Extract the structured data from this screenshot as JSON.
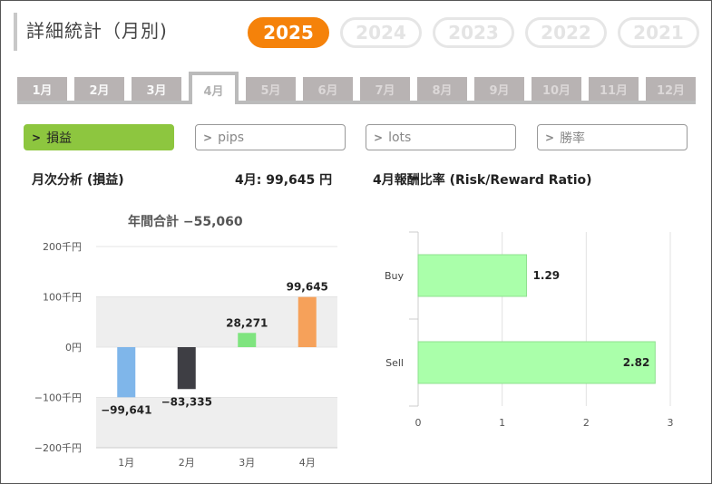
{
  "title": "詳細統計（月別)",
  "years": [
    {
      "label": "2025",
      "active": true
    },
    {
      "label": "2024",
      "active": false
    },
    {
      "label": "2023",
      "active": false
    },
    {
      "label": "2022",
      "active": false
    },
    {
      "label": "2021",
      "active": false
    }
  ],
  "months": [
    {
      "label": "1月",
      "state": "normal"
    },
    {
      "label": "2月",
      "state": "normal"
    },
    {
      "label": "3月",
      "state": "normal"
    },
    {
      "label": "4月",
      "state": "active"
    },
    {
      "label": "5月",
      "state": "dim"
    },
    {
      "label": "6月",
      "state": "dim"
    },
    {
      "label": "7月",
      "state": "dim"
    },
    {
      "label": "8月",
      "state": "dim"
    },
    {
      "label": "9月",
      "state": "dim"
    },
    {
      "label": "10月",
      "state": "dim"
    },
    {
      "label": "11月",
      "state": "dim"
    },
    {
      "label": "12月",
      "state": "dim"
    }
  ],
  "filters": [
    {
      "label": "損益",
      "active": true
    },
    {
      "label": "pips",
      "active": false
    },
    {
      "label": "lots",
      "active": false
    },
    {
      "label": "勝率",
      "active": false
    }
  ],
  "monthly": {
    "section_title": "月次分析 (損益)",
    "current_month_value": "4月:  99,645 円",
    "annual_total": "年間合計 −55,060"
  },
  "ratio": {
    "section_title": "4月報酬比率 (Risk/Reward Ratio)"
  },
  "colors": {
    "accent_orange": "#f5820a",
    "filter_green": "#8dc63f",
    "bar_blue": "#7fb6ea",
    "bar_dark": "#3e3e44",
    "bar_green": "#7fe47f",
    "bar_orange": "#f6a15a",
    "hbar_green": "#aaffaa"
  },
  "chart_data": [
    {
      "type": "bar",
      "categories": [
        "1月",
        "2月",
        "3月",
        "4月"
      ],
      "values": [
        -99641,
        -83335,
        28271,
        99645
      ],
      "labels": [
        "−99,641",
        "−83,335",
        "28,271",
        "99,645"
      ],
      "y_ticks": [
        "200千円",
        "100千円",
        "0円",
        "−100千円",
        "−200千円"
      ],
      "y_tick_values": [
        200000,
        100000,
        0,
        -100000,
        -200000
      ],
      "ylim": [
        -200000,
        200000
      ]
    },
    {
      "type": "bar",
      "orientation": "horizontal",
      "categories": [
        "Buy",
        "Sell"
      ],
      "values": [
        1.29,
        2.82
      ],
      "labels": [
        "1.29",
        "2.82"
      ],
      "x_ticks": [
        "0",
        "1",
        "2",
        "3"
      ],
      "xlim": [
        0,
        3
      ]
    }
  ]
}
